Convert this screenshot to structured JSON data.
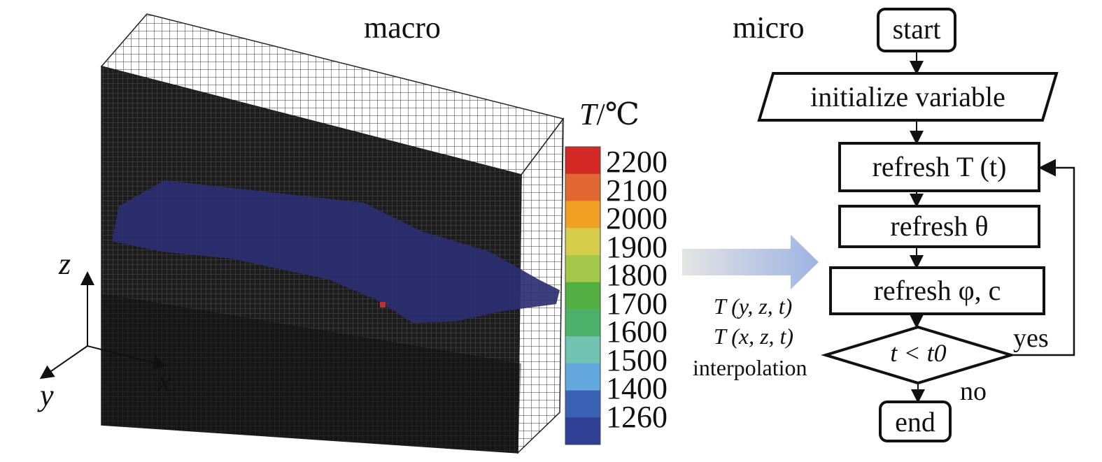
{
  "macro_label": "macro",
  "micro_label": "micro",
  "axes": {
    "x": "x",
    "y": "y",
    "z": "z"
  },
  "legend": {
    "title_var": "T",
    "title_unit": "/℃",
    "ticks": [
      "2200",
      "2100",
      "2000",
      "1900",
      "1800",
      "1700",
      "1600",
      "1500",
      "1400",
      "1260"
    ],
    "colors": [
      "#d42a25",
      "#e06632",
      "#f0a022",
      "#d6cd4a",
      "#a6c84a",
      "#52b043",
      "#4bb069",
      "#6fc3b0",
      "#62a8df",
      "#3a62b4",
      "#2e3f94"
    ]
  },
  "transfer_labels": {
    "line1": "T (y, z, t)",
    "line2": "T (x, z, t)",
    "line3": "interpolation"
  },
  "flowchart": {
    "start": "start",
    "init": "initialize variable",
    "refresh_T": "refresh T (t)",
    "refresh_theta": "refresh θ",
    "refresh_phi": "refresh φ, c",
    "condition": "t < t0",
    "yes": "yes",
    "no": "no",
    "end": "end"
  },
  "colors": {
    "mesh_line": "#3a3a3a",
    "mesh_bg": "#1c1c1c",
    "pool": "#2b2f70",
    "arrow_start": "#d8d8d8",
    "arrow_end": "#9fb6e4"
  }
}
